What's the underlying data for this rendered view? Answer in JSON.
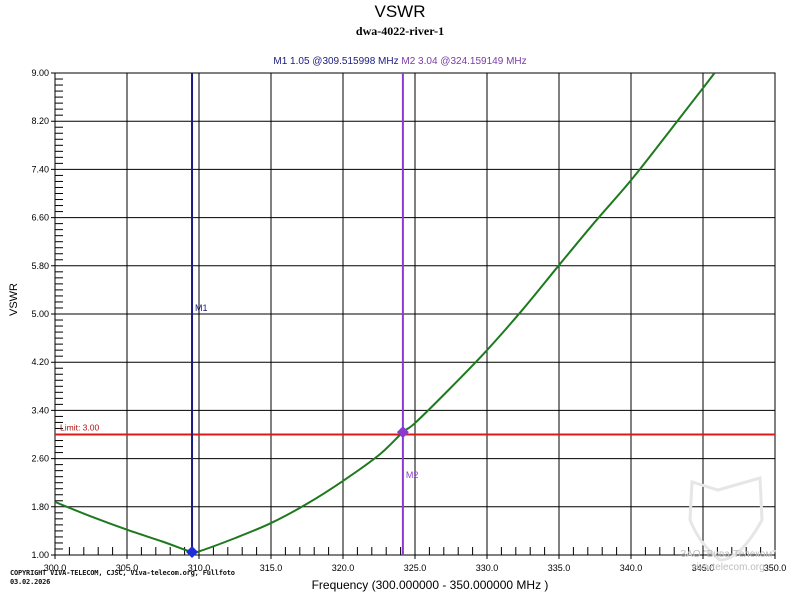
{
  "header": {
    "title": "VSWR",
    "subtitle": "dwa-4022-river-1",
    "marker1_text": "M1   1.05 @309.515998 MHz",
    "marker2_text": "M2   3.04 @324.159149 MHz"
  },
  "axes": {
    "ylabel": "VSWR",
    "xlabel": "Frequency (300.000000 - 350.000000 MHz )",
    "yticks": [
      "9.00",
      "8.20",
      "7.40",
      "6.60",
      "5.80",
      "5.00",
      "4.20",
      "3.40",
      "2.60",
      "1.80",
      "1.00"
    ],
    "xticks": [
      "300.0",
      "305.0",
      "310.0",
      "315.0",
      "320.0",
      "325.0",
      "330.0",
      "335.0",
      "340.0",
      "345.0",
      "350.0"
    ]
  },
  "limit": {
    "label": "Limit: 3.00",
    "value": 3.0,
    "color": "#e01818"
  },
  "markers": [
    {
      "label": "M1",
      "freq_mhz": 309.515998,
      "vswr": 1.05,
      "color": "#1a1a80"
    },
    {
      "label": "M2",
      "freq_mhz": 324.159149,
      "vswr": 3.04,
      "color": "#8a3ad0"
    }
  ],
  "footer": {
    "copyright_line1": "COPYRIGHT VIVA-TELECOM, CJSC, Viva-telecom.org, Fullfoto",
    "copyright_line2": "03.02.2026",
    "watermark_line1": "ЗАО \"Вива-Телеком\"",
    "watermark_line2": "viva-telecom.org"
  },
  "colors": {
    "trace": "#1e7a1e",
    "grid": "#000000",
    "background": "#ffffff"
  },
  "chart_data": {
    "type": "line",
    "title": "VSWR",
    "subtitle": "dwa-4022-river-1",
    "xlabel": "Frequency (300.000000 - 350.000000 MHz )",
    "ylabel": "VSWR",
    "xlim": [
      300,
      350
    ],
    "ylim": [
      1.0,
      9.0
    ],
    "grid": true,
    "legend": "none",
    "series": [
      {
        "name": "VSWR",
        "x": [
          300.0,
          302.5,
          305.0,
          307.5,
          309.5,
          310.0,
          312.5,
          315.0,
          317.5,
          320.0,
          322.5,
          324.16,
          325.0,
          327.5,
          330.0,
          332.5,
          335.0,
          337.5,
          340.0,
          342.5,
          345.0,
          345.8
        ],
        "values": [
          1.88,
          1.64,
          1.42,
          1.22,
          1.05,
          1.06,
          1.28,
          1.53,
          1.85,
          2.23,
          2.66,
          3.04,
          3.19,
          3.78,
          4.4,
          5.08,
          5.81,
          6.53,
          7.22,
          7.98,
          8.75,
          9.0
        ]
      }
    ],
    "annotations": [
      {
        "type": "hline",
        "y": 3.0,
        "label": "Limit: 3.00"
      },
      {
        "type": "vline_marker",
        "label": "M1",
        "x": 309.515998,
        "y": 1.05
      },
      {
        "type": "vline_marker",
        "label": "M2",
        "x": 324.159149,
        "y": 3.04
      }
    ]
  }
}
